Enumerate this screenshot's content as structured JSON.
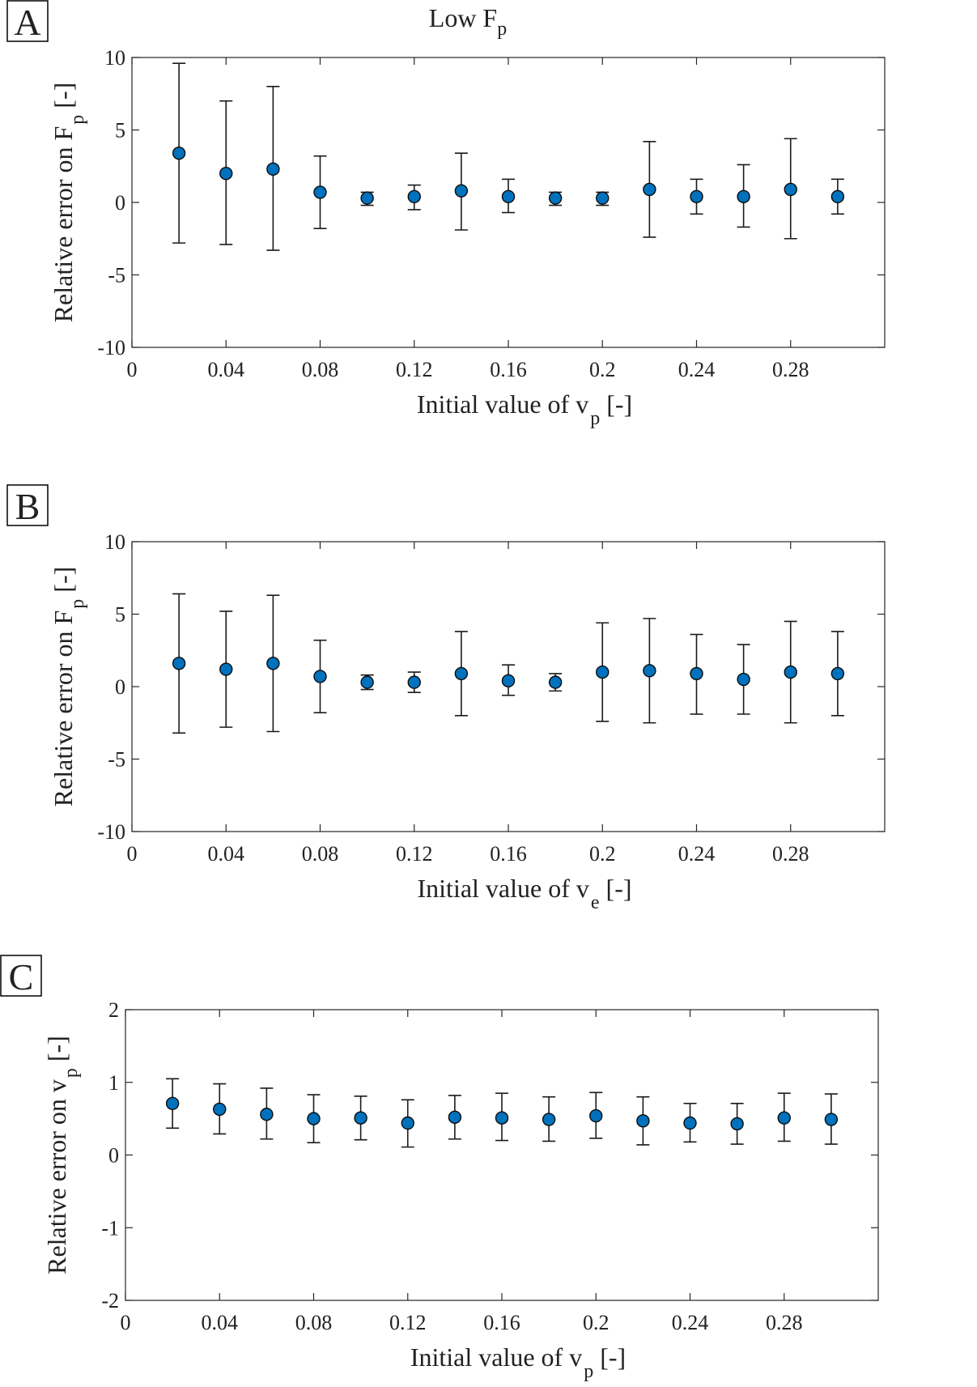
{
  "figure_title": {
    "main": "Low F",
    "sub": "p"
  },
  "colors": {
    "marker": "#0072BD",
    "axis": "#262626",
    "background": "#FFFFFF"
  },
  "chart_data": [
    {
      "panel": "A",
      "type": "scatter",
      "error_bars": true,
      "x": [
        0.02,
        0.04,
        0.06,
        0.08,
        0.1,
        0.12,
        0.14,
        0.16,
        0.18,
        0.2,
        0.22,
        0.24,
        0.26,
        0.28,
        0.3
      ],
      "y": [
        3.4,
        2.0,
        2.3,
        0.7,
        0.3,
        0.4,
        0.8,
        0.4,
        0.3,
        0.3,
        0.9,
        0.4,
        0.4,
        0.9,
        0.4
      ],
      "y_upper": [
        9.6,
        7.0,
        8.0,
        3.2,
        0.7,
        1.2,
        3.4,
        1.6,
        0.7,
        0.7,
        4.2,
        1.6,
        2.6,
        4.4,
        1.6
      ],
      "y_lower": [
        -2.8,
        -2.9,
        -3.3,
        -1.8,
        -0.2,
        -0.5,
        -1.9,
        -0.7,
        -0.2,
        -0.2,
        -2.4,
        -0.8,
        -1.7,
        -2.5,
        -0.8
      ],
      "xlim": [
        0,
        0.32
      ],
      "ylim": [
        -10,
        10
      ],
      "xticks": [
        0,
        0.04,
        0.08,
        0.12,
        0.16,
        0.2,
        0.24,
        0.28
      ],
      "xtick_labels": [
        "0",
        "0.04",
        "0.08",
        "0.12",
        "0.16",
        "0.2",
        "0.24",
        "0.28"
      ],
      "yticks": [
        -10,
        -5,
        0,
        5,
        10
      ],
      "ytick_labels": [
        "-10",
        "-5",
        "0",
        "5",
        "10"
      ],
      "xlabel": {
        "pre": "Initial value of v",
        "sub": "p",
        "post": " [-]"
      },
      "ylabel": {
        "pre": "Relative error on F",
        "sub": "p",
        "post": " [-]"
      },
      "grid": false,
      "legend": "none"
    },
    {
      "panel": "B",
      "type": "scatter",
      "error_bars": true,
      "x": [
        0.02,
        0.04,
        0.06,
        0.08,
        0.1,
        0.12,
        0.14,
        0.16,
        0.18,
        0.2,
        0.22,
        0.24,
        0.26,
        0.28,
        0.3
      ],
      "y": [
        1.6,
        1.2,
        1.6,
        0.7,
        0.3,
        0.3,
        0.9,
        0.4,
        0.3,
        1.0,
        1.1,
        0.9,
        0.5,
        1.0,
        0.9
      ],
      "y_upper": [
        6.4,
        5.2,
        6.3,
        3.2,
        0.8,
        1.0,
        3.8,
        1.5,
        0.9,
        4.4,
        4.7,
        3.6,
        2.9,
        4.5,
        3.8
      ],
      "y_lower": [
        -3.2,
        -2.8,
        -3.1,
        -1.8,
        -0.2,
        -0.4,
        -2.0,
        -0.6,
        -0.3,
        -2.4,
        -2.5,
        -1.9,
        -1.9,
        -2.5,
        -2.0
      ],
      "xlim": [
        0,
        0.32
      ],
      "ylim": [
        -10,
        10
      ],
      "xticks": [
        0,
        0.04,
        0.08,
        0.12,
        0.16,
        0.2,
        0.24,
        0.28
      ],
      "xtick_labels": [
        "0",
        "0.04",
        "0.08",
        "0.12",
        "0.16",
        "0.2",
        "0.24",
        "0.28"
      ],
      "yticks": [
        -10,
        -5,
        0,
        5,
        10
      ],
      "ytick_labels": [
        "-10",
        "-5",
        "0",
        "5",
        "10"
      ],
      "xlabel": {
        "pre": "Initial value of v",
        "sub": "e",
        "post": " [-]"
      },
      "ylabel": {
        "pre": "Relative error on F",
        "sub": "p",
        "post": " [-]"
      },
      "grid": false,
      "legend": "none"
    },
    {
      "panel": "C",
      "type": "scatter",
      "error_bars": true,
      "x": [
        0.02,
        0.04,
        0.06,
        0.08,
        0.1,
        0.12,
        0.14,
        0.16,
        0.18,
        0.2,
        0.22,
        0.24,
        0.26,
        0.28,
        0.3
      ],
      "y": [
        0.71,
        0.63,
        0.56,
        0.5,
        0.51,
        0.44,
        0.52,
        0.51,
        0.49,
        0.54,
        0.47,
        0.44,
        0.43,
        0.51,
        0.49
      ],
      "y_upper": [
        1.05,
        0.98,
        0.92,
        0.83,
        0.81,
        0.76,
        0.82,
        0.85,
        0.8,
        0.86,
        0.8,
        0.71,
        0.71,
        0.85,
        0.84
      ],
      "y_lower": [
        0.37,
        0.29,
        0.22,
        0.17,
        0.21,
        0.11,
        0.22,
        0.2,
        0.19,
        0.23,
        0.14,
        0.18,
        0.15,
        0.19,
        0.15
      ],
      "xlim": [
        0,
        0.32
      ],
      "ylim": [
        -2,
        2
      ],
      "xticks": [
        0,
        0.04,
        0.08,
        0.12,
        0.16,
        0.2,
        0.24,
        0.28
      ],
      "xtick_labels": [
        "0",
        "0.04",
        "0.08",
        "0.12",
        "0.16",
        "0.2",
        "0.24",
        "0.28"
      ],
      "yticks": [
        -2,
        -1,
        0,
        1,
        2
      ],
      "ytick_labels": [
        "-2",
        "-1",
        "0",
        "1",
        "2"
      ],
      "xlabel": {
        "pre": "Initial value of v",
        "sub": "p",
        "post": " [-]"
      },
      "ylabel": {
        "pre": "Relative error on v",
        "sub": "p",
        "post": " [-]"
      },
      "grid": false,
      "legend": "none"
    }
  ]
}
